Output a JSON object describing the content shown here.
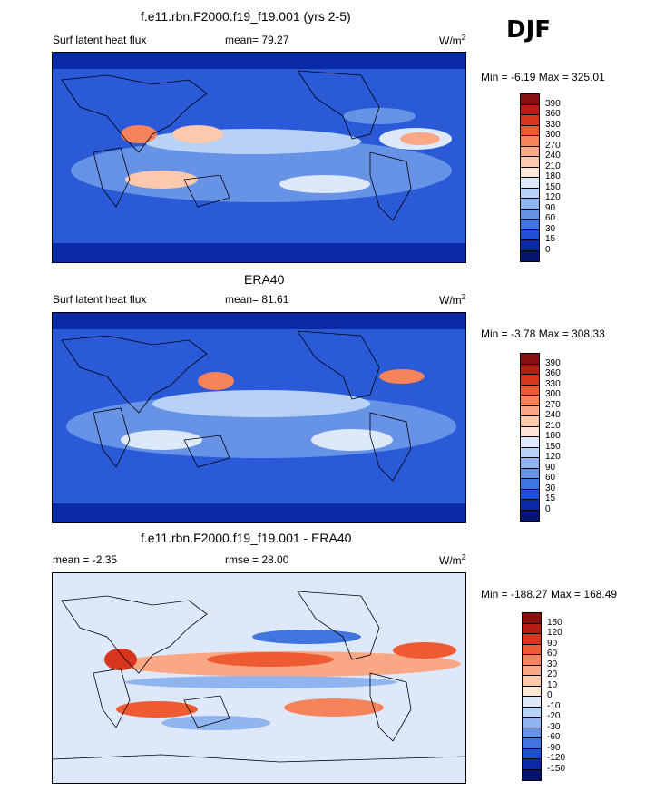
{
  "season": "DJF",
  "chart_data": [
    {
      "type": "heatmap",
      "title": "f.e11.rbn.F2000.f19_f19.001 (yrs 2-5)",
      "left_label": "Surf latent heat flux",
      "mean_label": "mean=  79.27",
      "units": "W/m",
      "units_sup": "2",
      "minmax": "Min =  -6.19 Max = 325.01",
      "levels": [
        "390",
        "360",
        "330",
        "300",
        "270",
        "240",
        "210",
        "180",
        "150",
        "120",
        "90",
        "60",
        "30",
        "15",
        "0"
      ],
      "colors": [
        "#8a0f12",
        "#b51e14",
        "#d8351f",
        "#ee5b33",
        "#f6835c",
        "#f9a785",
        "#fcc9ad",
        "#fde6d4",
        "#dde9fa",
        "#b8d2f7",
        "#8fb4ef",
        "#6793e6",
        "#4074de",
        "#1f4fd2",
        "#0b2aa8",
        "#04136e"
      ]
    },
    {
      "type": "heatmap",
      "title": "ERA40",
      "left_label": "Surf latent heat flux",
      "mean_label": "mean=  81.61",
      "units": "W/m",
      "units_sup": "2",
      "minmax": "Min =  -3.78 Max = 308.33",
      "levels": [
        "390",
        "360",
        "330",
        "300",
        "270",
        "240",
        "210",
        "180",
        "150",
        "120",
        "90",
        "60",
        "30",
        "15",
        "0"
      ],
      "colors": [
        "#8a0f12",
        "#b51e14",
        "#d8351f",
        "#ee5b33",
        "#f6835c",
        "#f9a785",
        "#fcc9ad",
        "#fde6d4",
        "#dde9fa",
        "#b8d2f7",
        "#8fb4ef",
        "#6793e6",
        "#4074de",
        "#1f4fd2",
        "#0b2aa8",
        "#04136e"
      ]
    },
    {
      "type": "heatmap",
      "title": "f.e11.rbn.F2000.f19_f19.001 - ERA40",
      "left_label": "mean =  -2.35",
      "mean_label": "rmse =  28.00",
      "units": "W/m",
      "units_sup": "2",
      "minmax": "Min = -188.27 Max = 168.49",
      "levels": [
        "150",
        "120",
        "90",
        "60",
        "30",
        "20",
        "10",
        "0",
        "-10",
        "-20",
        "-30",
        "-60",
        "-90",
        "-120",
        "-150"
      ],
      "colors": [
        "#8a0f12",
        "#b51e14",
        "#d8351f",
        "#ee5b33",
        "#f6835c",
        "#f9a785",
        "#fcc9ad",
        "#fde6d4",
        "#dde9fa",
        "#b8d2f7",
        "#8fb4ef",
        "#6793e6",
        "#4074de",
        "#1f4fd2",
        "#0b2aa8",
        "#04136e"
      ]
    }
  ]
}
